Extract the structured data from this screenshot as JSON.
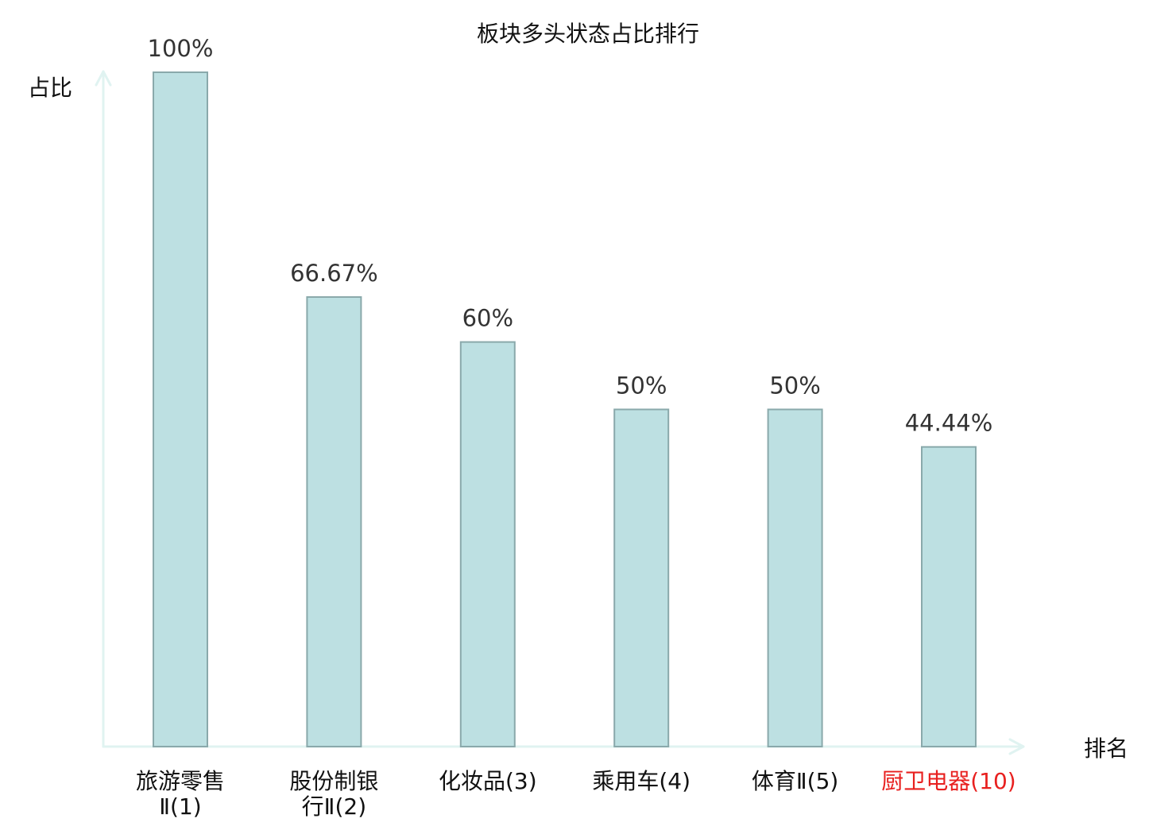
{
  "chart_data": {
    "type": "bar",
    "title": "板块多头状态占比排行",
    "ylabel": "占比",
    "xlabel": "排名",
    "ylim": [
      0,
      100
    ],
    "grid": false,
    "categories": [
      {
        "lines": [
          "旅游零售",
          "Ⅱ(1)"
        ],
        "highlight": false
      },
      {
        "lines": [
          "股份制银",
          "行Ⅱ(2)"
        ],
        "highlight": false
      },
      {
        "lines": [
          "化妆品(3)"
        ],
        "highlight": false
      },
      {
        "lines": [
          "乘用车(4)"
        ],
        "highlight": false
      },
      {
        "lines": [
          "体育Ⅱ(5)"
        ],
        "highlight": false
      },
      {
        "lines": [
          "厨卫电器(10)"
        ],
        "highlight": true
      }
    ],
    "values": [
      100,
      66.67,
      60,
      50,
      50,
      44.44
    ],
    "value_labels": [
      "100%",
      "66.67%",
      "60%",
      "50%",
      "50%",
      "44.44%"
    ]
  },
  "colors": {
    "bar_fill": "#bde0e2",
    "bar_stroke": "#8aa9ab",
    "axis": "#e0f3f1",
    "label_text": "#111111",
    "value_text": "#333333",
    "highlight_text": "#e8201f"
  }
}
